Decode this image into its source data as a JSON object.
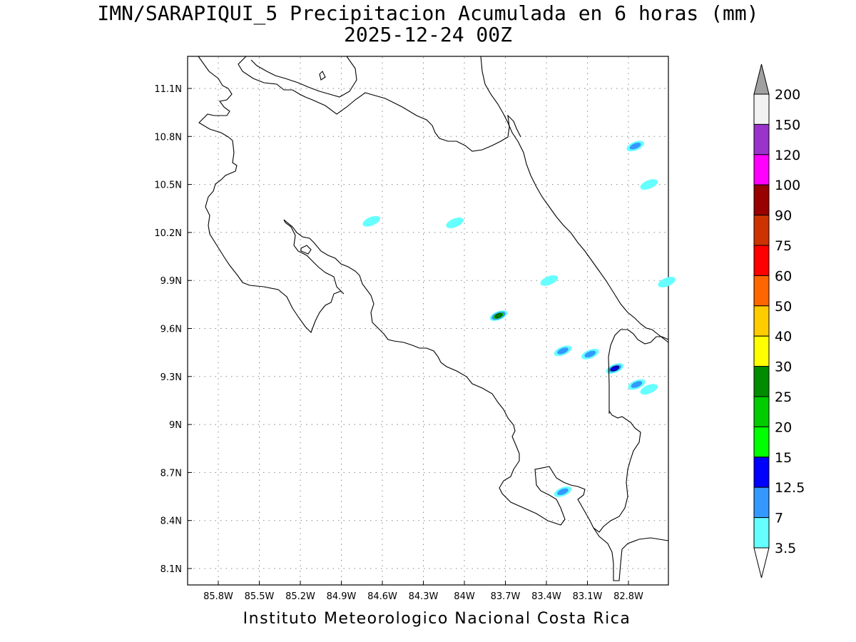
{
  "title": {
    "line1": "IMN/SARAPIQUI_5 Precipitacion Acumulada en 6 horas (mm)",
    "line2": "2025-12-24 00Z"
  },
  "footer": "Instituto Meteorologico Nacional Costa Rica",
  "axes": {
    "x_ticks": [
      "85.8W",
      "85.5W",
      "85.2W",
      "84.9W",
      "84.6W",
      "84.3W",
      "84W",
      "83.7W",
      "83.4W",
      "83.1W",
      "82.8W"
    ],
    "y_ticks": [
      "11.1N",
      "10.8N",
      "10.5N",
      "10.2N",
      "9.9N",
      "9.6N",
      "9.3N",
      "9N",
      "8.7N",
      "8.4N",
      "8.1N"
    ],
    "x_values": [
      -85.8,
      -85.5,
      -85.2,
      -84.9,
      -84.6,
      -84.3,
      -84.0,
      -83.7,
      -83.4,
      -83.1,
      -82.8
    ],
    "y_values": [
      11.1,
      10.8,
      10.5,
      10.2,
      9.9,
      9.6,
      9.3,
      9.0,
      8.7,
      8.4,
      8.1
    ],
    "lon_range": [
      -86.0,
      -82.5
    ],
    "lat_range": [
      8.0,
      11.3
    ],
    "grid": "dotted"
  },
  "legend": {
    "placement": "right",
    "levels": [
      "3.5",
      "7",
      "12.5",
      "15",
      "20",
      "25",
      "30",
      "40",
      "50",
      "60",
      "75",
      "90",
      "100",
      "120",
      "150",
      "200"
    ],
    "colors": [
      "#66ffff",
      "#3399ff",
      "#0000ff",
      "#00ff00",
      "#00cc00",
      "#008c00",
      "#ffff00",
      "#ffcc00",
      "#ff6600",
      "#ff0000",
      "#cc3300",
      "#990000",
      "#ff00ff",
      "#9933cc",
      "#f2f2f2"
    ],
    "over_color": "#a0a0a0",
    "under_color": "#ffffff"
  },
  "precip_cells": [
    {
      "lon": -82.75,
      "lat": 10.74,
      "levels": [
        3.5,
        7
      ]
    },
    {
      "lon": -82.65,
      "lat": 10.5,
      "levels": [
        3.5
      ]
    },
    {
      "lon": -84.68,
      "lat": 10.27,
      "levels": [
        3.5
      ]
    },
    {
      "lon": -84.07,
      "lat": 10.26,
      "levels": [
        3.5
      ]
    },
    {
      "lon": -83.75,
      "lat": 9.68,
      "levels": [
        3.5,
        7,
        20,
        25
      ]
    },
    {
      "lon": -83.28,
      "lat": 9.46,
      "levels": [
        3.5,
        7
      ]
    },
    {
      "lon": -83.08,
      "lat": 9.44,
      "levels": [
        3.5,
        7
      ]
    },
    {
      "lon": -82.9,
      "lat": 9.35,
      "levels": [
        3.5,
        7,
        12.5
      ]
    },
    {
      "lon": -82.74,
      "lat": 9.25,
      "levels": [
        3.5,
        7
      ]
    },
    {
      "lon": -82.65,
      "lat": 9.22,
      "levels": [
        3.5
      ]
    },
    {
      "lon": -83.28,
      "lat": 8.58,
      "levels": [
        3.5,
        7
      ]
    },
    {
      "lon": -82.52,
      "lat": 9.89,
      "levels": [
        3.5
      ]
    },
    {
      "lon": -83.38,
      "lat": 9.9,
      "levels": [
        3.5
      ]
    }
  ]
}
